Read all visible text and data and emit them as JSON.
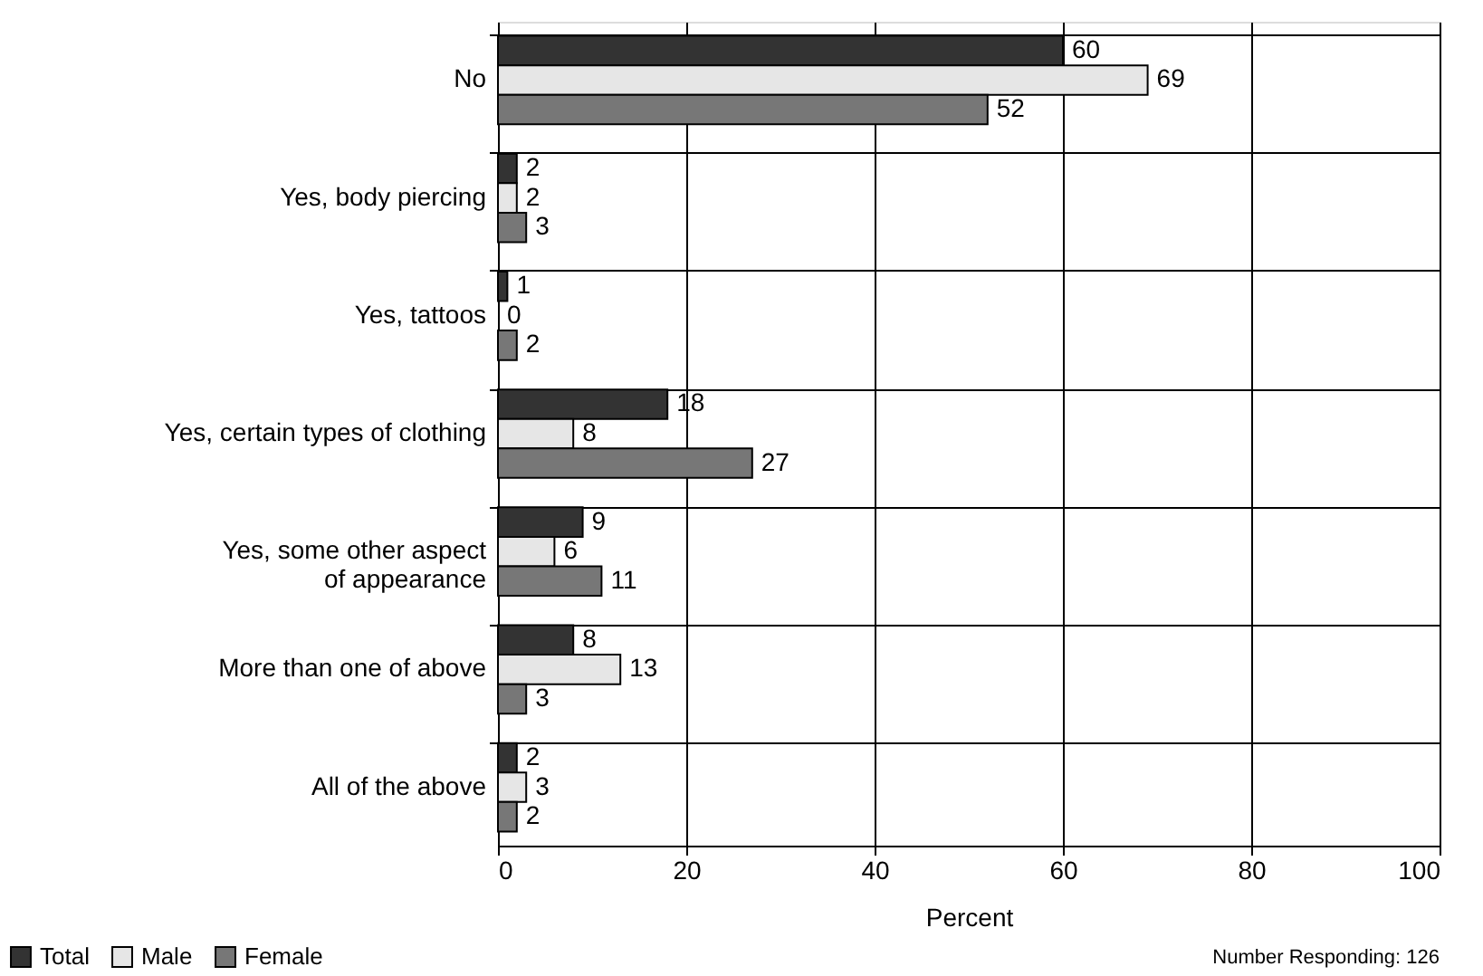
{
  "chart_data": {
    "type": "bar",
    "orientation": "horizontal",
    "xlabel": "Percent",
    "categories": [
      "No",
      "Yes, body piercing",
      "Yes, tattoos",
      "Yes, certain types of clothing",
      "Yes, some other aspect\nof appearance",
      "More than one of above",
      "All of the above"
    ],
    "series": [
      {
        "name": "Total",
        "color": "#333333",
        "values": [
          60,
          2,
          1,
          18,
          9,
          8,
          2
        ]
      },
      {
        "name": "Male",
        "color": "#e6e6e6",
        "values": [
          69,
          2,
          0,
          8,
          6,
          13,
          3
        ]
      },
      {
        "name": "Female",
        "color": "#777777",
        "values": [
          52,
          3,
          2,
          27,
          11,
          3,
          2
        ]
      }
    ],
    "xlim": [
      0,
      100
    ],
    "xticks": [
      0,
      20,
      40,
      60,
      80,
      100
    ],
    "grid": true,
    "legend": "bottom left",
    "data_labels": true,
    "annotations": [
      "Number Responding: 126"
    ]
  }
}
